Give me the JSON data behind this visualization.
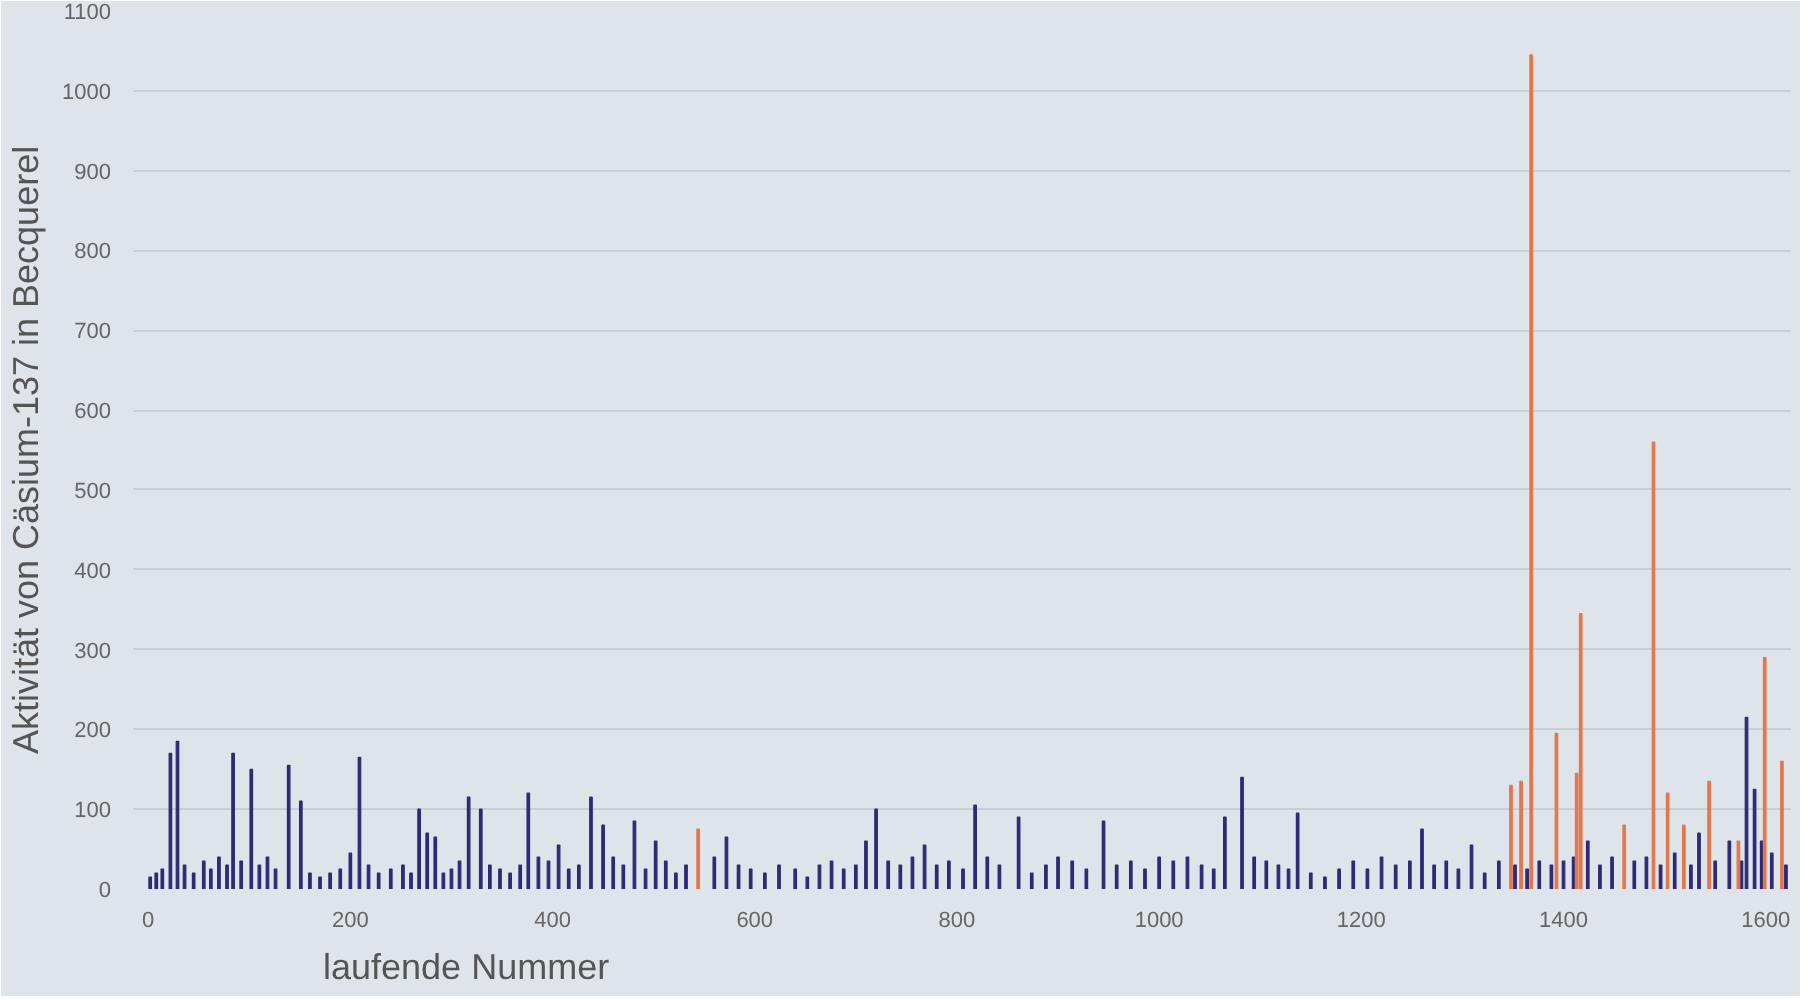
{
  "chart_data": {
    "type": "bar",
    "xlabel": "laufende Nummer",
    "ylabel": "Aktivität von Cäsium-137 in Becquerel",
    "xlim": [
      -15,
      1625
    ],
    "xticks": [
      0,
      200,
      400,
      600,
      800,
      1000,
      1200,
      1400,
      1600
    ],
    "ylim": [
      0,
      1100
    ],
    "yticks": [
      0,
      100,
      200,
      300,
      400,
      500,
      600,
      700,
      800,
      900,
      1000,
      1100
    ],
    "grid": "y",
    "series": [
      {
        "color": "#2e2a78",
        "x": [
          2,
          8,
          14,
          22,
          29,
          36,
          45,
          55,
          62,
          70,
          78,
          84,
          92,
          102,
          110,
          118,
          126,
          139,
          151,
          160,
          170,
          180,
          190,
          200,
          209,
          218,
          228,
          240,
          252,
          260,
          268,
          276,
          284,
          292,
          300,
          308,
          317,
          329,
          338,
          348,
          358,
          368,
          376,
          386,
          396,
          406,
          416,
          426,
          438,
          450,
          460,
          470,
          481,
          492,
          502,
          512,
          522,
          532,
          560,
          572,
          584,
          596,
          610,
          624,
          640,
          652,
          664,
          676,
          688,
          700,
          710,
          720,
          732,
          744,
          756,
          768,
          780,
          792,
          806,
          818,
          830,
          842,
          861,
          874,
          888,
          900,
          914,
          928,
          945,
          958,
          972,
          986,
          1000,
          1014,
          1028,
          1042,
          1054,
          1065,
          1082,
          1094,
          1106,
          1118,
          1128,
          1137,
          1150,
          1164,
          1178,
          1192,
          1206,
          1220,
          1234,
          1248,
          1260,
          1272,
          1284,
          1296,
          1309,
          1322,
          1336,
          1352,
          1364,
          1376,
          1388,
          1400,
          1410,
          1424,
          1436,
          1448,
          1470,
          1482,
          1496,
          1510,
          1526,
          1534,
          1550,
          1564,
          1576,
          1581,
          1589,
          1596,
          1606,
          1620
        ],
        "values": [
          15,
          20,
          25,
          170,
          185,
          30,
          20,
          35,
          25,
          40,
          30,
          170,
          35,
          150,
          30,
          40,
          25,
          155,
          110,
          20,
          15,
          20,
          25,
          45,
          165,
          30,
          20,
          25,
          30,
          20,
          100,
          70,
          65,
          20,
          25,
          35,
          115,
          100,
          30,
          25,
          20,
          30,
          120,
          40,
          35,
          55,
          25,
          30,
          115,
          80,
          40,
          30,
          85,
          25,
          60,
          35,
          20,
          30,
          40,
          65,
          30,
          25,
          20,
          30,
          25,
          15,
          30,
          35,
          25,
          30,
          60,
          100,
          35,
          30,
          40,
          55,
          30,
          35,
          25,
          105,
          40,
          30,
          90,
          20,
          30,
          40,
          35,
          25,
          85,
          30,
          35,
          25,
          40,
          35,
          40,
          30,
          25,
          90,
          140,
          40,
          35,
          30,
          25,
          95,
          20,
          15,
          25,
          35,
          25,
          40,
          30,
          35,
          75,
          30,
          35,
          25,
          55,
          20,
          35,
          30,
          25,
          35,
          30,
          35,
          40,
          60,
          30,
          40,
          35,
          40,
          30,
          45,
          30,
          70,
          35,
          60,
          35,
          215,
          125,
          60,
          45,
          30
        ]
      },
      {
        "color": "#e2784e",
        "x": [
          544,
          1348,
          1358,
          1368,
          1393,
          1413,
          1417,
          1460,
          1489,
          1503,
          1519,
          1544,
          1573,
          1599,
          1616
        ],
        "values": [
          75,
          130,
          135,
          1045,
          195,
          145,
          345,
          80,
          560,
          120,
          80,
          135,
          60,
          290,
          160
        ]
      }
    ]
  }
}
